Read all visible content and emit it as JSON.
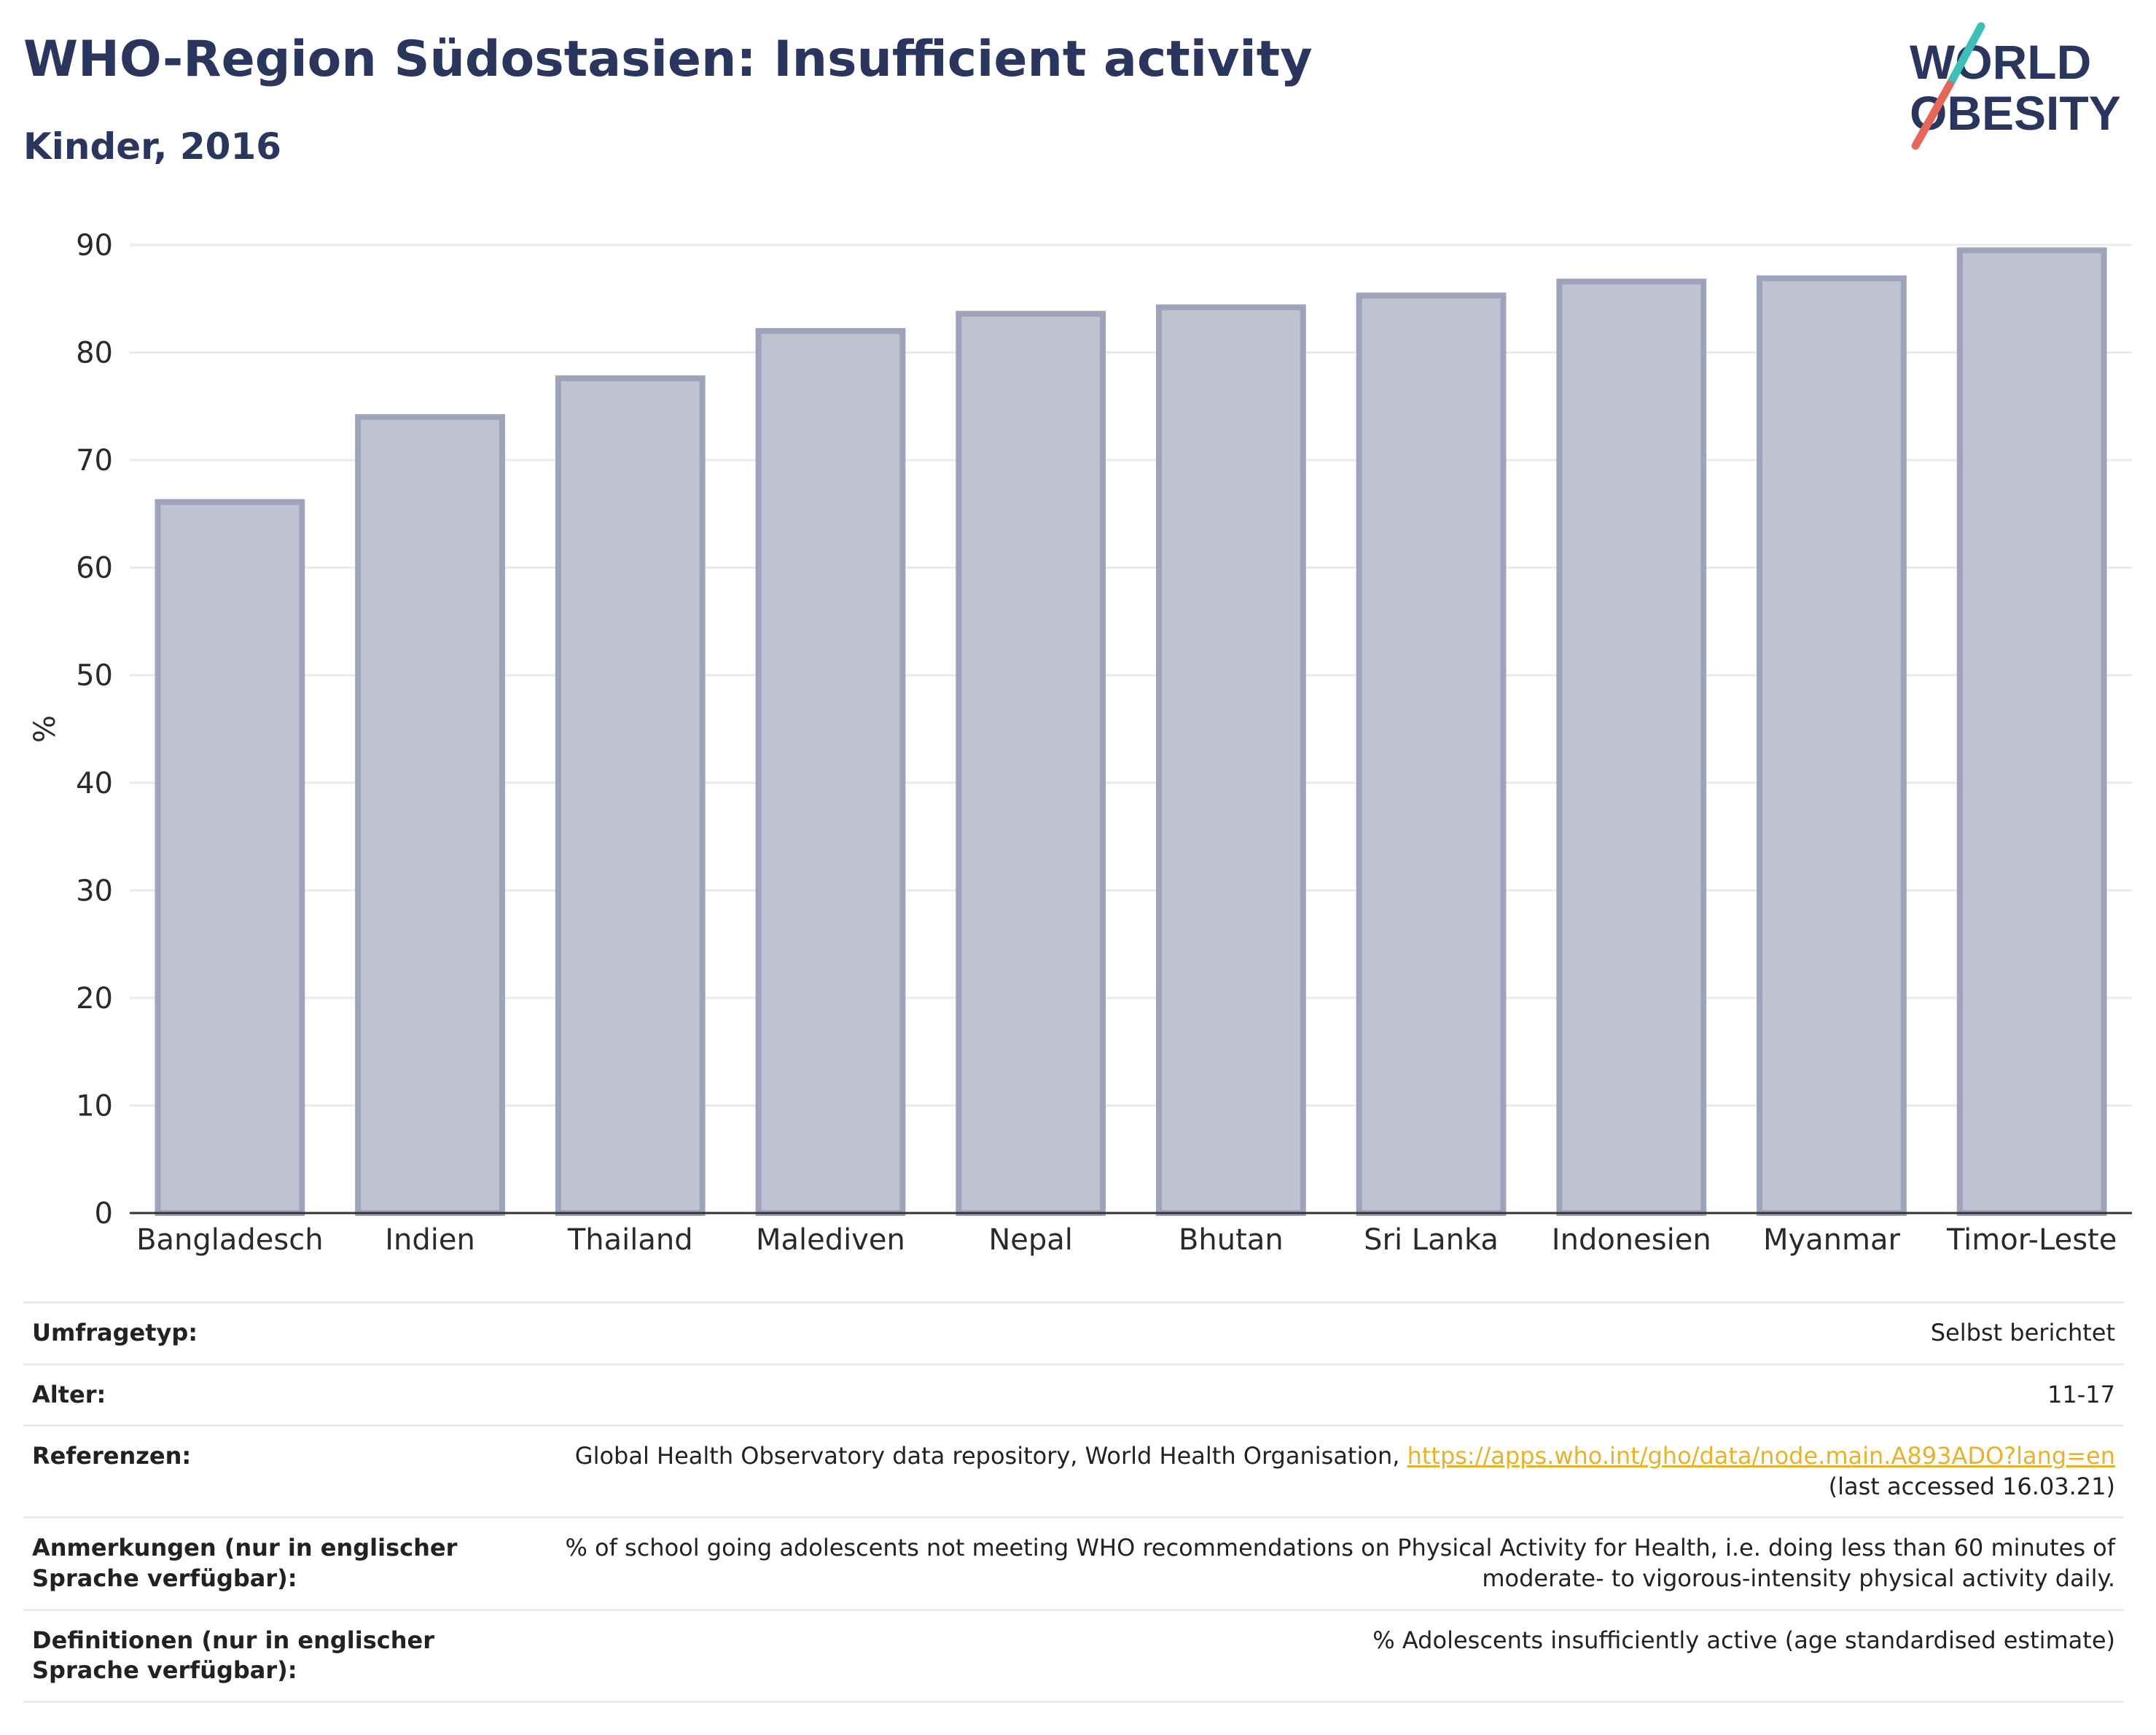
{
  "header": {
    "title": "WHO-Region Südostasien: Insufficient activity",
    "subtitle": "Kinder, 2016"
  },
  "logo": {
    "line1": "WORLD",
    "line2": "OBESITY"
  },
  "colors": {
    "title": "#2b365f",
    "bar_fill": "#bfc2d0",
    "bar_stroke": "#9fa3b9",
    "link": "#e8b12a",
    "logo_teal": "#3bbfb8",
    "logo_red": "#e5675a"
  },
  "chart_data": {
    "type": "bar",
    "categories": [
      "Bangladesch",
      "Indien",
      "Thailand",
      "Malediven",
      "Nepal",
      "Bhutan",
      "Sri Lanka",
      "Indonesien",
      "Myanmar",
      "Timor-Leste"
    ],
    "values": [
      66.1,
      74.0,
      77.6,
      82.0,
      83.6,
      84.2,
      85.3,
      86.6,
      86.9,
      89.5
    ],
    "ylabel": "%",
    "xlabel": "",
    "ylim": [
      0,
      90
    ],
    "yticks": [
      0,
      10,
      20,
      30,
      40,
      50,
      60,
      70,
      80,
      90
    ],
    "grid": true,
    "legend": "none"
  },
  "info": {
    "survey_label": "Umfragetyp:",
    "survey_value": "Selbst berichtet",
    "age_label": "Alter:",
    "age_value": "11-17",
    "refs_label": "Referenzen:",
    "refs_text": "Global Health Observatory data repository, World Health Organisation,",
    "refs_link": "https://apps.who.int/gho/data/node.main.A893ADO?lang=en",
    "refs_accessed": "(last accessed 16.03.21)",
    "notes_label": "Anmerkungen (nur in englischer Sprache verfügbar):",
    "notes_value": "% of school going adolescents not meeting WHO recommendations on Physical Activity for Health, i.e. doing less than 60 minutes of moderate- to vigorous-intensity physical activity daily.",
    "defs_label": "Definitionen (nur in englischer Sprache verfügbar):",
    "defs_value": "% Adolescents insufficiently active (age standardised estimate)"
  }
}
